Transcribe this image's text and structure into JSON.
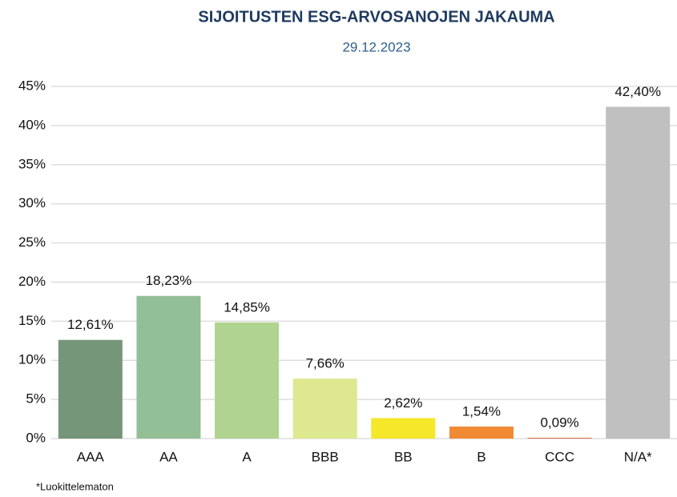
{
  "chart_data": {
    "type": "bar",
    "title": "SIJOITUSTEN ESG-ARVOSANOJEN JAKAUMA",
    "subtitle": "29.12.2023",
    "categories": [
      "AAA",
      "AA",
      "A",
      "BBB",
      "BB",
      "B",
      "CCC",
      "N/A*"
    ],
    "values": [
      12.61,
      18.23,
      14.85,
      7.66,
      2.62,
      1.54,
      0.09,
      42.4
    ],
    "value_labels": [
      "12,61%",
      "18,23%",
      "14,85%",
      "7,66%",
      "2,62%",
      "1,54%",
      "0,09%",
      "42,40%"
    ],
    "colors": [
      "#76967a",
      "#93bf96",
      "#b0d48f",
      "#dde88f",
      "#f5e72a",
      "#f08a35",
      "#e05a2a",
      "#c0c0c0"
    ],
    "ylim": [
      0,
      45
    ],
    "yticks": [
      {
        "value": 0,
        "label": "0%"
      },
      {
        "value": 5,
        "label": "5%"
      },
      {
        "value": 10,
        "label": "10%"
      },
      {
        "value": 15,
        "label": "15%"
      },
      {
        "value": 20,
        "label": "20%"
      },
      {
        "value": 25,
        "label": "25%"
      },
      {
        "value": 30,
        "label": "30%"
      },
      {
        "value": 35,
        "label": "35%"
      },
      {
        "value": 40,
        "label": "40%"
      },
      {
        "value": 45,
        "label": "45%"
      }
    ],
    "grid": true,
    "footnote": "*Luokittelematon"
  }
}
